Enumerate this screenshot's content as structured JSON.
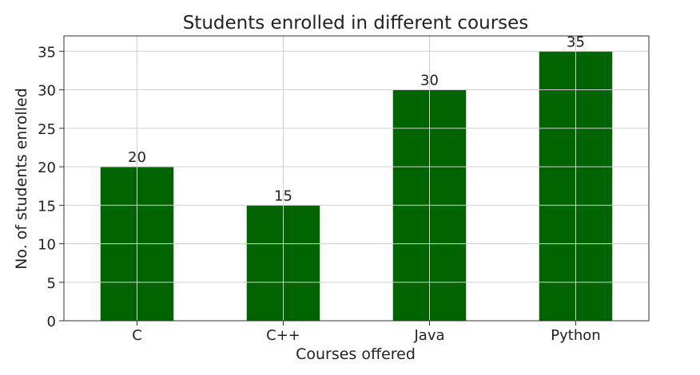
{
  "chart_data": {
    "type": "bar",
    "title": "Students enrolled in different courses",
    "xlabel": "Courses offered",
    "ylabel": "No. of students enrolled",
    "categories": [
      "C",
      "C++",
      "Java",
      "Python"
    ],
    "values": [
      20,
      15,
      30,
      35
    ],
    "data_labels": [
      "20",
      "15",
      "30",
      "35"
    ],
    "ylim": [
      0,
      37
    ],
    "yticks": [
      0,
      5,
      10,
      15,
      20,
      25,
      30,
      35
    ],
    "grid": true,
    "bar_color": "#006400"
  }
}
